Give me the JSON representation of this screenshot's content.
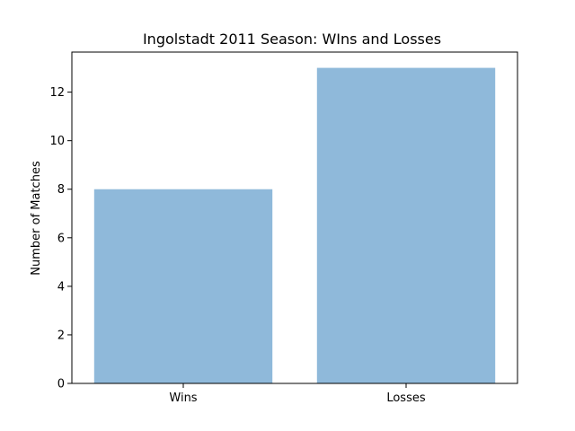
{
  "chart_data": {
    "type": "bar",
    "title": "Ingolstadt 2011 Season: WIns and Losses",
    "xlabel": "",
    "ylabel": "Number of Matches",
    "categories": [
      "Wins",
      "Losses"
    ],
    "values": [
      8,
      13
    ],
    "ylim": [
      0,
      13.65
    ],
    "yticks": [
      0,
      2,
      4,
      6,
      8,
      10,
      12
    ],
    "bar_color": "#8fb9da",
    "grid": false,
    "legend": "none"
  }
}
